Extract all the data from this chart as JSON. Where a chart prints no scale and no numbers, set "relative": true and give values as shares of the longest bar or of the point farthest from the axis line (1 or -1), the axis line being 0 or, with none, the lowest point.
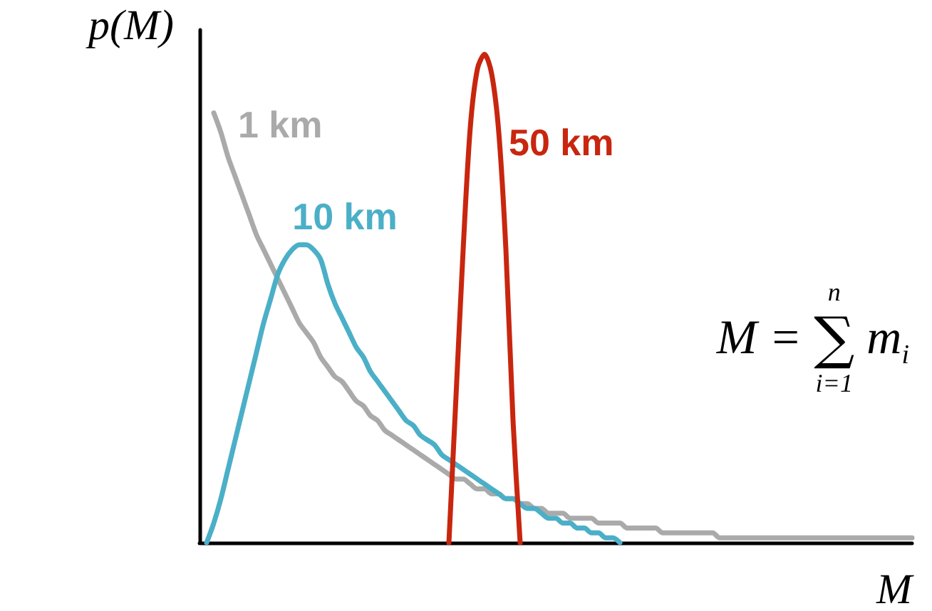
{
  "chart_data": {
    "type": "line",
    "relative": true,
    "xlabel": "M",
    "ylabel": "p(M)",
    "grid": false,
    "legend": false,
    "marker": "none",
    "line_style": "solid",
    "annotations": [
      "M = ∑$^{n}$$_{i=1}$ m$_{i}$"
    ],
    "categories": [
      null,
      null,
      null,
      null,
      null,
      null,
      null,
      null,
      null,
      null,
      null,
      null,
      null,
      null,
      null,
      null,
      null,
      null,
      null,
      null,
      null,
      null,
      null,
      null,
      null,
      null,
      null,
      null,
      null,
      null,
      null,
      null,
      null,
      null,
      null,
      null,
      null,
      null,
      null,
      null,
      null,
      null,
      null,
      null,
      null,
      null,
      null,
      null,
      null,
      null,
      null,
      null,
      null,
      null,
      null,
      null,
      null,
      null,
      null,
      null,
      null,
      null,
      null,
      null,
      null,
      null,
      null,
      null,
      null,
      null,
      null,
      null,
      null,
      null,
      null,
      null,
      null,
      null,
      null,
      null,
      null,
      null,
      null,
      null,
      null,
      null,
      null,
      null,
      null,
      null,
      null,
      null,
      null,
      null,
      null,
      null,
      null,
      null,
      null,
      null,
      null
    ],
    "series": [
      {
        "name": "1 km",
        "color": "#aaaaaa",
        "values": [
          null,
          null,
          0.88,
          0.84,
          0.79,
          0.75,
          0.71,
          0.67,
          0.63,
          0.6,
          0.57,
          0.54,
          0.51,
          0.48,
          0.45,
          0.43,
          0.41,
          0.38,
          0.36,
          0.34,
          0.33,
          0.31,
          0.29,
          0.28,
          0.26,
          0.25,
          0.23,
          0.22,
          0.21,
          0.2,
          0.19,
          0.18,
          0.17,
          0.16,
          0.15,
          0.14,
          0.13,
          0.13,
          0.12,
          0.11,
          0.11,
          0.1,
          0.1,
          0.09,
          0.09,
          0.08,
          0.08,
          0.07,
          0.07,
          0.06,
          0.06,
          0.06,
          0.05,
          0.05,
          0.05,
          0.05,
          0.04,
          0.04,
          0.04,
          0.04,
          0.03,
          0.03,
          0.03,
          0.03,
          0.03,
          0.02,
          0.02,
          0.02,
          0.02,
          0.02,
          0.02,
          0.02,
          0.02,
          0.01,
          0.01,
          0.01,
          0.01,
          0.01,
          0.01,
          0.01,
          0.01,
          0.01,
          0.01,
          0.01,
          0.01,
          0.01,
          0.01,
          0.01,
          0.01,
          0.01,
          0.01,
          0.01,
          0.01,
          0.01,
          0.01,
          0.01,
          0.01,
          0.01,
          0.01,
          0.01,
          0.01
        ]
      },
      {
        "name": "10 km",
        "color": "#4bafc8",
        "values": [
          null,
          0,
          0.04,
          0.09,
          0.15,
          0.21,
          0.27,
          0.33,
          0.39,
          0.45,
          0.5,
          0.55,
          0.58,
          0.6,
          0.61,
          0.61,
          0.6,
          0.58,
          0.53,
          0.49,
          0.46,
          0.43,
          0.4,
          0.38,
          0.35,
          0.33,
          0.31,
          0.29,
          0.27,
          0.25,
          0.24,
          0.22,
          0.21,
          0.2,
          0.18,
          0.17,
          0.16,
          0.15,
          0.14,
          0.13,
          0.12,
          0.11,
          0.1,
          0.09,
          0.09,
          0.08,
          0.07,
          0.07,
          0.06,
          0.05,
          0.05,
          0.04,
          0.04,
          0.03,
          0.03,
          0.02,
          0.02,
          0.01,
          0.01,
          0,
          null,
          null,
          null,
          null,
          null,
          null,
          null,
          null,
          null,
          null,
          null,
          null,
          null,
          null,
          null,
          null,
          null,
          null,
          null,
          null,
          null,
          null,
          null,
          null,
          null,
          null,
          null,
          null,
          null,
          null,
          null,
          null,
          null,
          null,
          null,
          null,
          null,
          null,
          null,
          null,
          null
        ]
      },
      {
        "name": "50 km",
        "color": "#c8260f",
        "values": [
          null,
          null,
          null,
          null,
          null,
          null,
          null,
          null,
          null,
          null,
          null,
          null,
          null,
          null,
          null,
          null,
          null,
          null,
          null,
          null,
          null,
          null,
          null,
          null,
          null,
          null,
          null,
          null,
          null,
          null,
          null,
          null,
          null,
          null,
          null,
          0,
          0.3,
          0.6,
          0.85,
          0.97,
          1,
          0.96,
          0.84,
          0.6,
          0.25,
          0,
          null,
          null,
          null,
          null,
          null,
          null,
          null,
          null,
          null,
          null,
          null,
          null,
          null,
          null,
          null,
          null,
          null,
          null,
          null,
          null,
          null,
          null,
          null,
          null,
          null,
          null,
          null,
          null,
          null,
          null,
          null,
          null,
          null,
          null,
          null,
          null,
          null,
          null,
          null,
          null,
          null,
          null,
          null,
          null,
          null,
          null,
          null,
          null,
          null,
          null,
          null,
          null,
          null,
          null,
          null
        ]
      }
    ]
  }
}
